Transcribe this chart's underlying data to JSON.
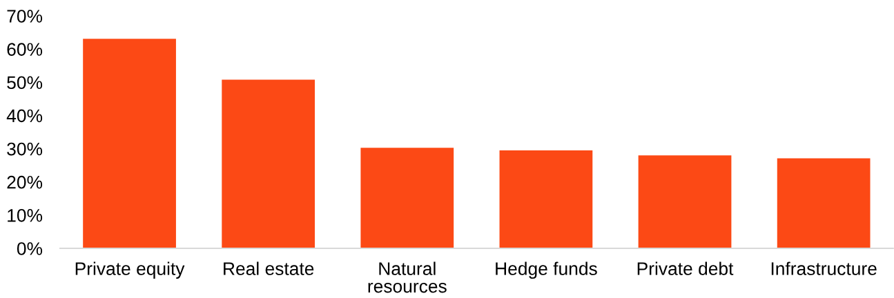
{
  "chart_data": {
    "type": "bar",
    "categories": [
      "Private equity",
      "Real estate",
      "Natural\nresources",
      "Hedge funds",
      "Private debt",
      "Infrastructure"
    ],
    "values": [
      63.1,
      50.8,
      30.3,
      29.5,
      28.0,
      27.1
    ],
    "color": "#fc4915",
    "ylim": [
      0,
      70
    ],
    "yticks": [
      {
        "value": 0,
        "label": "0%"
      },
      {
        "value": 10,
        "label": "10%"
      },
      {
        "value": 20,
        "label": "20%"
      },
      {
        "value": 30,
        "label": "30%"
      },
      {
        "value": 40,
        "label": "40%"
      },
      {
        "value": 50,
        "label": "50%"
      },
      {
        "value": 60,
        "label": "60%"
      },
      {
        "value": 70,
        "label": "70%"
      }
    ],
    "grid": false,
    "legend": false
  }
}
